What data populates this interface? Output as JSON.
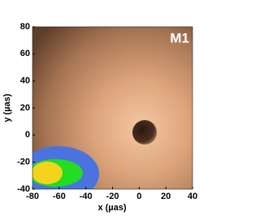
{
  "chart_data": {
    "type": "image",
    "annotation": "M1",
    "xlabel": "x (µas)",
    "ylabel": "y (µas)",
    "xlim": [
      -80,
      40
    ],
    "ylim": [
      -40,
      80
    ],
    "xticks": [
      -80,
      -60,
      -40,
      -20,
      0,
      20,
      40
    ],
    "yticks": [
      -40,
      -20,
      0,
      20,
      40,
      60,
      80
    ]
  }
}
